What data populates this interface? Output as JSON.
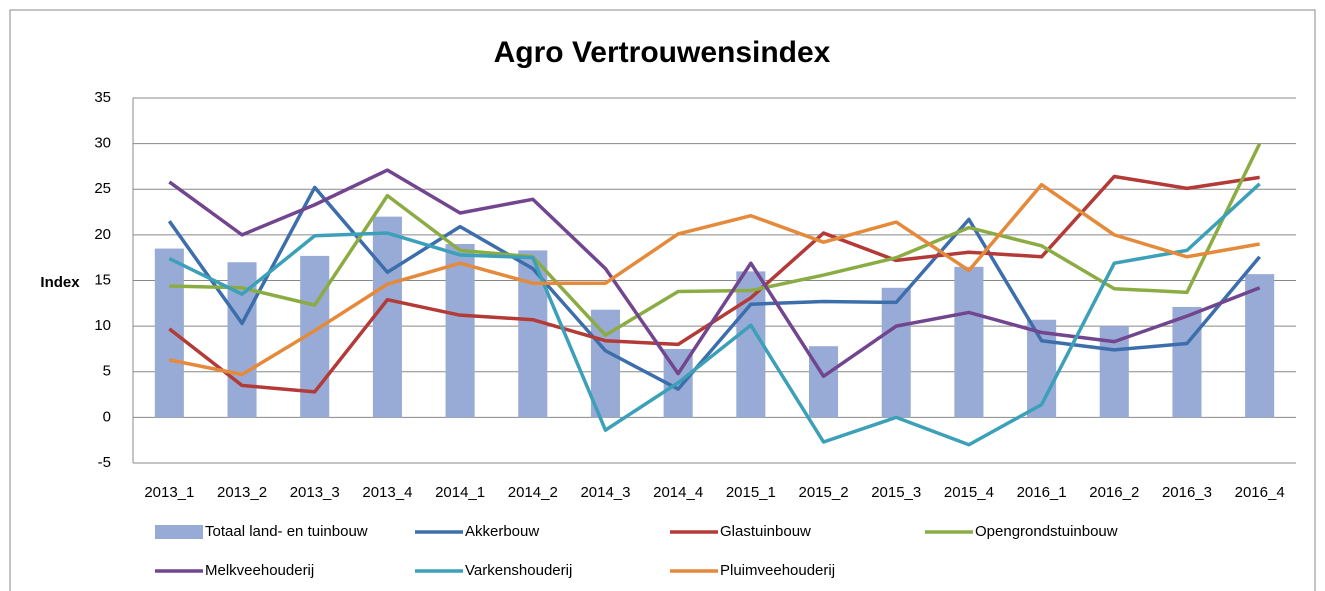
{
  "chart_data": {
    "type": "combo",
    "title": "Agro Vertrouwensindex",
    "y_label": "Index",
    "categories": [
      "2013_1",
      "2013_2",
      "2013_3",
      "2013_4",
      "2014_1",
      "2014_2",
      "2014_3",
      "2014_4",
      "2015_1",
      "2015_2",
      "2015_3",
      "2015_4",
      "2016_1",
      "2016_2",
      "2016_3",
      "2016_4"
    ],
    "ylim": [
      -5,
      35
    ],
    "yticks": [
      -5,
      0,
      5,
      10,
      15,
      20,
      25,
      30,
      35
    ],
    "grid": true,
    "series": [
      {
        "name": "Totaal land- en tuinbouw",
        "type": "bar",
        "color": "#98abd6",
        "values": [
          18.5,
          17,
          17.7,
          22,
          19,
          18.3,
          11.8,
          7.5,
          16,
          7.8,
          14.2,
          16.5,
          10.7,
          10,
          12.1,
          15.7
        ]
      },
      {
        "name": "Akkerbouw",
        "type": "line",
        "color": "#3d6eac",
        "values": [
          21.5,
          10.3,
          25.2,
          15.9,
          20.9,
          16.3,
          7.3,
          3.1,
          12.4,
          12.7,
          12.6,
          21.7,
          8.4,
          7.4,
          8.1,
          17.6
        ]
      },
      {
        "name": "Glastuinbouw",
        "type": "line",
        "color": "#b33a36",
        "values": [
          9.7,
          3.5,
          2.8,
          12.9,
          11.2,
          10.7,
          8.4,
          8.0,
          13.1,
          20.2,
          17.2,
          18.1,
          17.6,
          26.4,
          25.1,
          26.3
        ]
      },
      {
        "name": "Opengrondstuinbouw",
        "type": "line",
        "color": "#8bac43",
        "values": [
          14.4,
          14.2,
          12.3,
          24.3,
          18.3,
          17.6,
          9.0,
          13.8,
          13.9,
          15.6,
          17.5,
          20.8,
          18.8,
          14.1,
          13.7,
          30.0
        ]
      },
      {
        "name": "Melkveehouderij",
        "type": "line",
        "color": "#71468f",
        "values": [
          25.8,
          20.0,
          23.3,
          27.1,
          22.4,
          23.9,
          16.3,
          4.8,
          16.9,
          4.5,
          10.0,
          11.5,
          9.3,
          8.3,
          11.1,
          14.2
        ]
      },
      {
        "name": "Varkenshouderij",
        "type": "line",
        "color": "#3ba0b8",
        "values": [
          17.4,
          13.5,
          19.9,
          20.2,
          17.8,
          17.5,
          -1.4,
          3.8,
          10.1,
          -2.7,
          0,
          -3.0,
          1.4,
          16.9,
          18.3,
          25.6
        ]
      },
      {
        "name": "Pluimveehouderij",
        "type": "line",
        "color": "#e5893a",
        "values": [
          6.3,
          4.7,
          9.5,
          14.6,
          16.9,
          14.7,
          14.7,
          20.1,
          22.1,
          19.2,
          21.4,
          16.1,
          25.5,
          20.0,
          17.6,
          19.0
        ]
      }
    ]
  }
}
